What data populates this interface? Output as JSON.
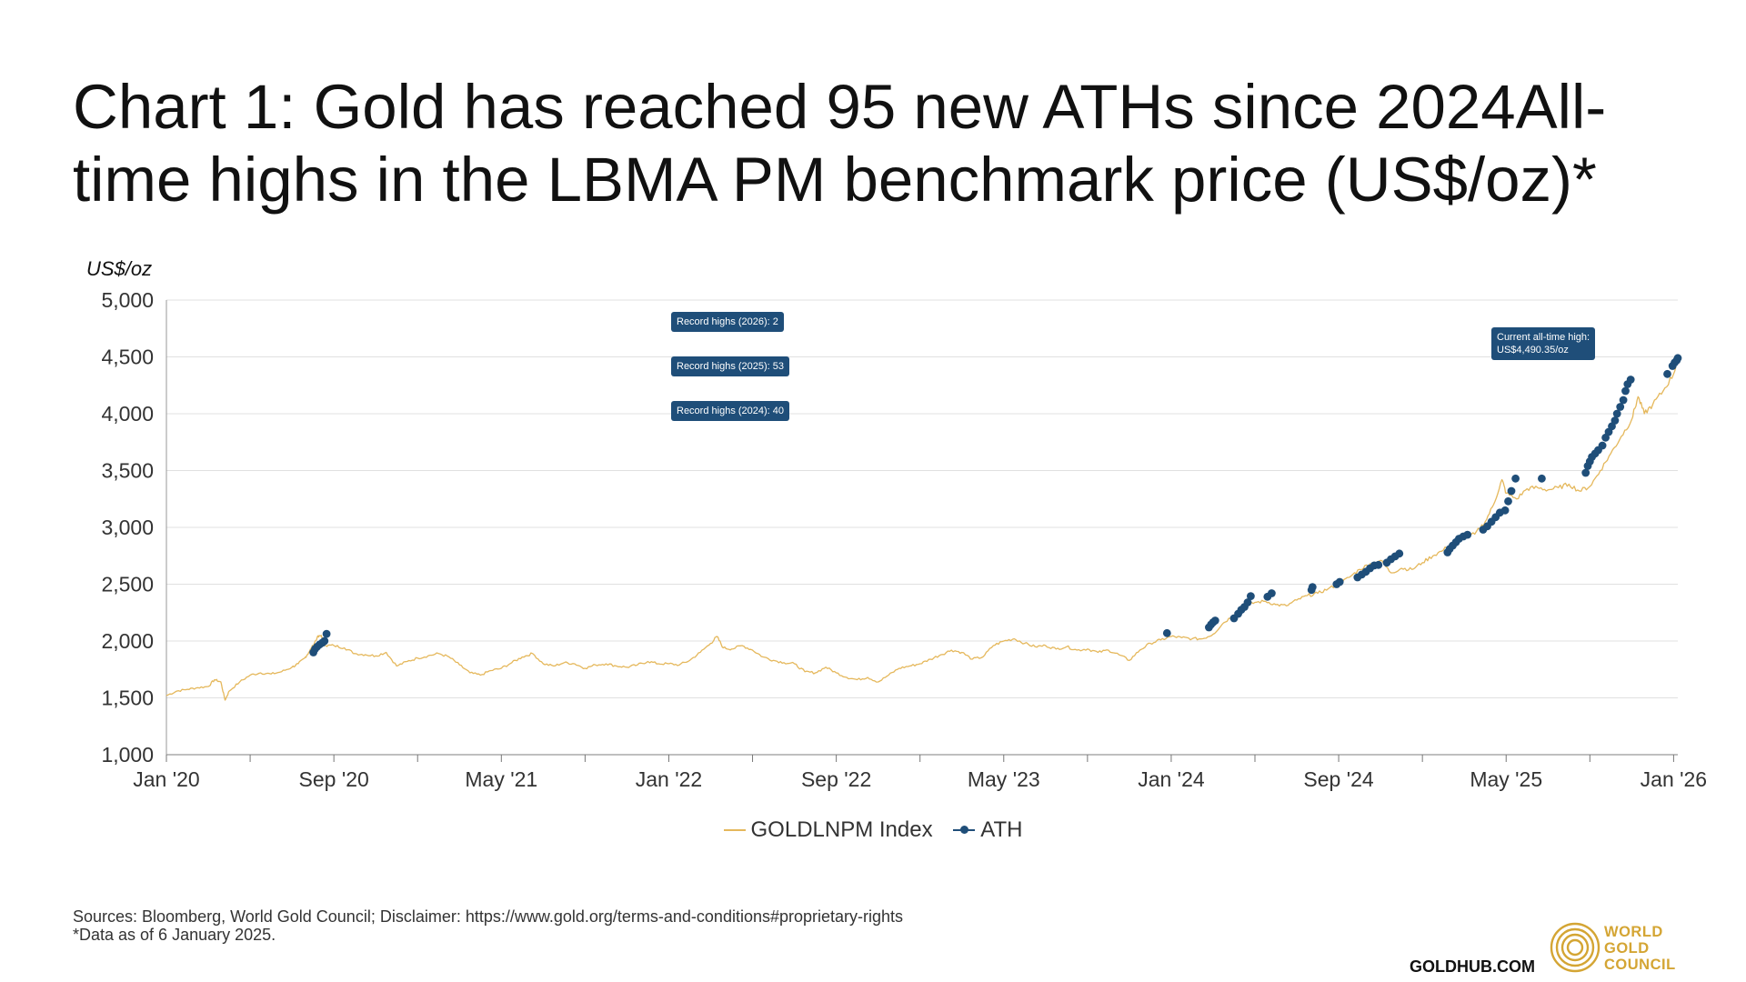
{
  "title": "Chart 1: Gold has reached 95 new ATHs since 2024All-time highs in the LBMA PM benchmark price (US$/oz)*",
  "colors": {
    "line": "#E5B85C",
    "ath": "#1F4E79",
    "badge": "#1F4E79",
    "grid": "#E0E0E0",
    "gold": "#D4A534"
  },
  "chart_data": {
    "type": "line",
    "title": "Chart 1: Gold has reached 95 new ATHs since 2024All-time highs in the LBMA PM benchmark price (US$/oz)*",
    "ylabel": "US$/oz",
    "xlabel": "",
    "ylim": [
      1000,
      5000
    ],
    "yticks": [
      1000,
      1500,
      2000,
      2500,
      3000,
      3500,
      4000,
      4500,
      5000
    ],
    "ytick_labels": [
      "1,000",
      "1,500",
      "2,000",
      "2,500",
      "3,000",
      "3,500",
      "4,000",
      "4,500",
      "5,000"
    ],
    "xlim": [
      0,
      72.2
    ],
    "x_unit": "months since Jan 2020",
    "xtick_labels": [
      "Jan '20",
      "Sep '20",
      "May '21",
      "Jan '22",
      "Sep '22",
      "May '23",
      "Jan '24",
      "Sep '24",
      "May '25",
      "Jan '26"
    ],
    "xtick_positions": [
      0,
      8,
      16,
      24,
      32,
      40,
      48,
      56,
      64,
      72
    ],
    "minor_xticks": [
      4,
      12,
      20,
      28,
      36,
      44,
      52,
      60,
      68
    ],
    "grid": true,
    "legend": [
      "GOLDLNPM Index",
      "ATH"
    ],
    "legend_position": "bottom",
    "series": [
      {
        "name": "GOLDLNPM Index",
        "type": "line",
        "points": [
          [
            0,
            1520
          ],
          [
            0.5,
            1560
          ],
          [
            1,
            1575
          ],
          [
            1.5,
            1590
          ],
          [
            2,
            1600
          ],
          [
            2.3,
            1660
          ],
          [
            2.6,
            1640
          ],
          [
            2.8,
            1480
          ],
          [
            3,
            1560
          ],
          [
            3.5,
            1640
          ],
          [
            4,
            1700
          ],
          [
            4.5,
            1720
          ],
          [
            5,
            1710
          ],
          [
            5.5,
            1730
          ],
          [
            6,
            1770
          ],
          [
            6.3,
            1800
          ],
          [
            6.6,
            1850
          ],
          [
            6.8,
            1900
          ],
          [
            7,
            1960
          ],
          [
            7.2,
            2030
          ],
          [
            7.4,
            2050
          ],
          [
            7.6,
            1960
          ],
          [
            8,
            1960
          ],
          [
            8.5,
            1940
          ],
          [
            9,
            1890
          ],
          [
            9.5,
            1880
          ],
          [
            10,
            1870
          ],
          [
            10.5,
            1900
          ],
          [
            11,
            1780
          ],
          [
            11.5,
            1820
          ],
          [
            12,
            1850
          ],
          [
            12.5,
            1870
          ],
          [
            13,
            1890
          ],
          [
            13.5,
            1860
          ],
          [
            14,
            1790
          ],
          [
            14.5,
            1720
          ],
          [
            15,
            1700
          ],
          [
            15.5,
            1740
          ],
          [
            16,
            1760
          ],
          [
            16.5,
            1810
          ],
          [
            17,
            1860
          ],
          [
            17.5,
            1890
          ],
          [
            18,
            1800
          ],
          [
            18.5,
            1780
          ],
          [
            19,
            1810
          ],
          [
            19.5,
            1800
          ],
          [
            20,
            1760
          ],
          [
            20.5,
            1790
          ],
          [
            21,
            1800
          ],
          [
            21.5,
            1780
          ],
          [
            22,
            1770
          ],
          [
            22.5,
            1790
          ],
          [
            23,
            1820
          ],
          [
            23.5,
            1800
          ],
          [
            24,
            1800
          ],
          [
            24.5,
            1790
          ],
          [
            25,
            1830
          ],
          [
            25.5,
            1900
          ],
          [
            26,
            1980
          ],
          [
            26.3,
            2040
          ],
          [
            26.6,
            1940
          ],
          [
            27,
            1930
          ],
          [
            27.5,
            1960
          ],
          [
            28,
            1920
          ],
          [
            28.5,
            1860
          ],
          [
            29,
            1830
          ],
          [
            29.5,
            1810
          ],
          [
            30,
            1800
          ],
          [
            30.5,
            1730
          ],
          [
            31,
            1720
          ],
          [
            31.5,
            1770
          ],
          [
            32,
            1720
          ],
          [
            32.5,
            1680
          ],
          [
            33,
            1660
          ],
          [
            33.5,
            1680
          ],
          [
            34,
            1640
          ],
          [
            34.5,
            1700
          ],
          [
            35,
            1760
          ],
          [
            35.5,
            1780
          ],
          [
            36,
            1800
          ],
          [
            36.5,
            1840
          ],
          [
            37,
            1880
          ],
          [
            37.5,
            1920
          ],
          [
            38,
            1900
          ],
          [
            38.5,
            1840
          ],
          [
            39,
            1860
          ],
          [
            39.5,
            1960
          ],
          [
            40,
            2000
          ],
          [
            40.5,
            2020
          ],
          [
            41,
            1980
          ],
          [
            41.5,
            1950
          ],
          [
            42,
            1960
          ],
          [
            42.5,
            1930
          ],
          [
            43,
            1950
          ],
          [
            43.5,
            1920
          ],
          [
            44,
            1930
          ],
          [
            44.5,
            1900
          ],
          [
            45,
            1920
          ],
          [
            45.5,
            1880
          ],
          [
            46,
            1830
          ],
          [
            46.5,
            1920
          ],
          [
            47,
            1980
          ],
          [
            47.5,
            2010
          ],
          [
            48,
            2040
          ],
          [
            48.5,
            2030
          ],
          [
            49,
            2020
          ],
          [
            49.5,
            2020
          ],
          [
            50,
            2060
          ],
          [
            50.5,
            2160
          ],
          [
            51,
            2230
          ],
          [
            51.5,
            2300
          ],
          [
            52,
            2340
          ],
          [
            52.5,
            2350
          ],
          [
            53,
            2320
          ],
          [
            53.5,
            2310
          ],
          [
            54,
            2360
          ],
          [
            54.5,
            2400
          ],
          [
            55,
            2420
          ],
          [
            55.5,
            2460
          ],
          [
            56,
            2500
          ],
          [
            56.5,
            2560
          ],
          [
            57,
            2630
          ],
          [
            57.5,
            2680
          ],
          [
            58,
            2710
          ],
          [
            58.5,
            2600
          ],
          [
            59,
            2640
          ],
          [
            59.5,
            2630
          ],
          [
            60,
            2690
          ],
          [
            60.5,
            2750
          ],
          [
            61,
            2800
          ],
          [
            61.5,
            2880
          ],
          [
            62,
            2920
          ],
          [
            62.5,
            2940
          ],
          [
            63,
            3050
          ],
          [
            63.4,
            3200
          ],
          [
            63.8,
            3420
          ],
          [
            64,
            3300
          ],
          [
            64.5,
            3250
          ],
          [
            65,
            3340
          ],
          [
            65.5,
            3350
          ],
          [
            66,
            3330
          ],
          [
            66.5,
            3350
          ],
          [
            67,
            3380
          ],
          [
            67.5,
            3320
          ],
          [
            68,
            3360
          ],
          [
            68.5,
            3500
          ],
          [
            69,
            3650
          ],
          [
            69.5,
            3800
          ],
          [
            70,
            3950
          ],
          [
            70.3,
            4150
          ],
          [
            70.6,
            4000
          ],
          [
            71,
            4080
          ],
          [
            71.5,
            4200
          ],
          [
            72,
            4350
          ],
          [
            72.2,
            4490
          ]
        ]
      },
      {
        "name": "ATH",
        "type": "scatter",
        "points": [
          [
            7.02,
            1900
          ],
          [
            7.1,
            1930
          ],
          [
            7.2,
            1950
          ],
          [
            7.32,
            1970
          ],
          [
            7.45,
            1985
          ],
          [
            7.55,
            2000
          ],
          [
            7.65,
            2063
          ],
          [
            47.8,
            2070
          ],
          [
            49.8,
            2120
          ],
          [
            49.9,
            2145
          ],
          [
            50.0,
            2165
          ],
          [
            50.1,
            2180
          ],
          [
            51.0,
            2200
          ],
          [
            51.2,
            2240
          ],
          [
            51.35,
            2275
          ],
          [
            51.5,
            2300
          ],
          [
            51.65,
            2340
          ],
          [
            51.8,
            2395
          ],
          [
            52.6,
            2390
          ],
          [
            52.8,
            2420
          ],
          [
            54.7,
            2450
          ],
          [
            54.75,
            2475
          ],
          [
            55.9,
            2500
          ],
          [
            56.05,
            2520
          ],
          [
            56.9,
            2560
          ],
          [
            57.1,
            2585
          ],
          [
            57.3,
            2610
          ],
          [
            57.5,
            2640
          ],
          [
            57.7,
            2665
          ],
          [
            57.9,
            2670
          ],
          [
            58.3,
            2690
          ],
          [
            58.5,
            2720
          ],
          [
            58.7,
            2745
          ],
          [
            58.9,
            2770
          ],
          [
            61.2,
            2780
          ],
          [
            61.3,
            2810
          ],
          [
            61.45,
            2840
          ],
          [
            61.6,
            2870
          ],
          [
            61.75,
            2900
          ],
          [
            61.95,
            2920
          ],
          [
            62.15,
            2935
          ],
          [
            62.9,
            2980
          ],
          [
            63.1,
            3010
          ],
          [
            63.3,
            3050
          ],
          [
            63.5,
            3090
          ],
          [
            63.7,
            3130
          ],
          [
            63.95,
            3150
          ],
          [
            64.1,
            3230
          ],
          [
            64.25,
            3320
          ],
          [
            64.45,
            3430
          ],
          [
            65.7,
            3430
          ],
          [
            67.8,
            3480
          ],
          [
            67.9,
            3540
          ],
          [
            68.0,
            3580
          ],
          [
            68.1,
            3620
          ],
          [
            68.25,
            3650
          ],
          [
            68.4,
            3680
          ],
          [
            68.6,
            3720
          ],
          [
            68.75,
            3790
          ],
          [
            68.9,
            3840
          ],
          [
            69.05,
            3890
          ],
          [
            69.2,
            3940
          ],
          [
            69.3,
            4000
          ],
          [
            69.45,
            4060
          ],
          [
            69.6,
            4120
          ],
          [
            69.7,
            4200
          ],
          [
            69.8,
            4260
          ],
          [
            69.95,
            4300
          ],
          [
            71.7,
            4350
          ],
          [
            71.95,
            4420
          ],
          [
            72.05,
            4450
          ],
          [
            72.15,
            4470
          ],
          [
            72.2,
            4490
          ]
        ]
      }
    ],
    "annotations": [
      {
        "text": "Record highs (2026): 2"
      },
      {
        "text": "Record highs (2025): 53"
      },
      {
        "text": "Record highs (2024): 40"
      },
      {
        "text": "Current all-time high: US$4,490.35/oz"
      }
    ]
  },
  "badges": {
    "r2026": "Record highs (2026): 2",
    "r2025": "Record highs (2025): 53",
    "r2024": "Record highs (2024): 40",
    "ath_line1": "Current all-time high:",
    "ath_line2": "US$4,490.35/oz"
  },
  "legend": {
    "line": "GOLDLNPM Index",
    "ath": "ATH"
  },
  "footer": {
    "sources": "Sources: Bloomberg, World Gold Council; Disclaimer: https://www.gold.org/terms-and-conditions#proprietary-rights",
    "note": "*Data as of 6 January 2025.",
    "site": "GOLDHUB.COM",
    "logo_line1": "WORLD",
    "logo_line2": "GOLD",
    "logo_line3": "COUNCIL"
  }
}
